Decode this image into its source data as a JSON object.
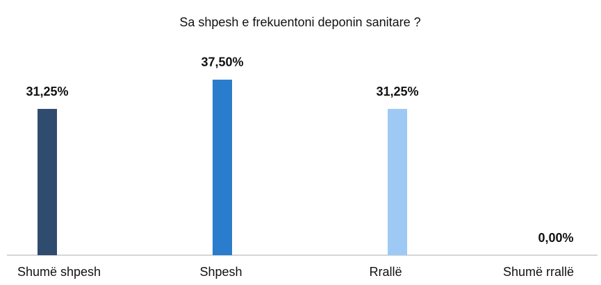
{
  "chart_data": {
    "type": "bar",
    "title": "Sa shpesh e frekuentoni deponin sanitare ?",
    "categories": [
      "Shumë shpesh",
      "Shpesh",
      "Rrallë",
      "Shumë rrallë"
    ],
    "values": [
      31.25,
      37.5,
      31.25,
      0
    ],
    "value_labels": [
      "31,25%",
      "37,50%",
      "31,25%",
      "0,00%"
    ],
    "colors": [
      "#2f4b6e",
      "#2a7ccc",
      "#9ec9f4",
      "#9ec9f4"
    ],
    "ylim": [
      0,
      40
    ]
  }
}
